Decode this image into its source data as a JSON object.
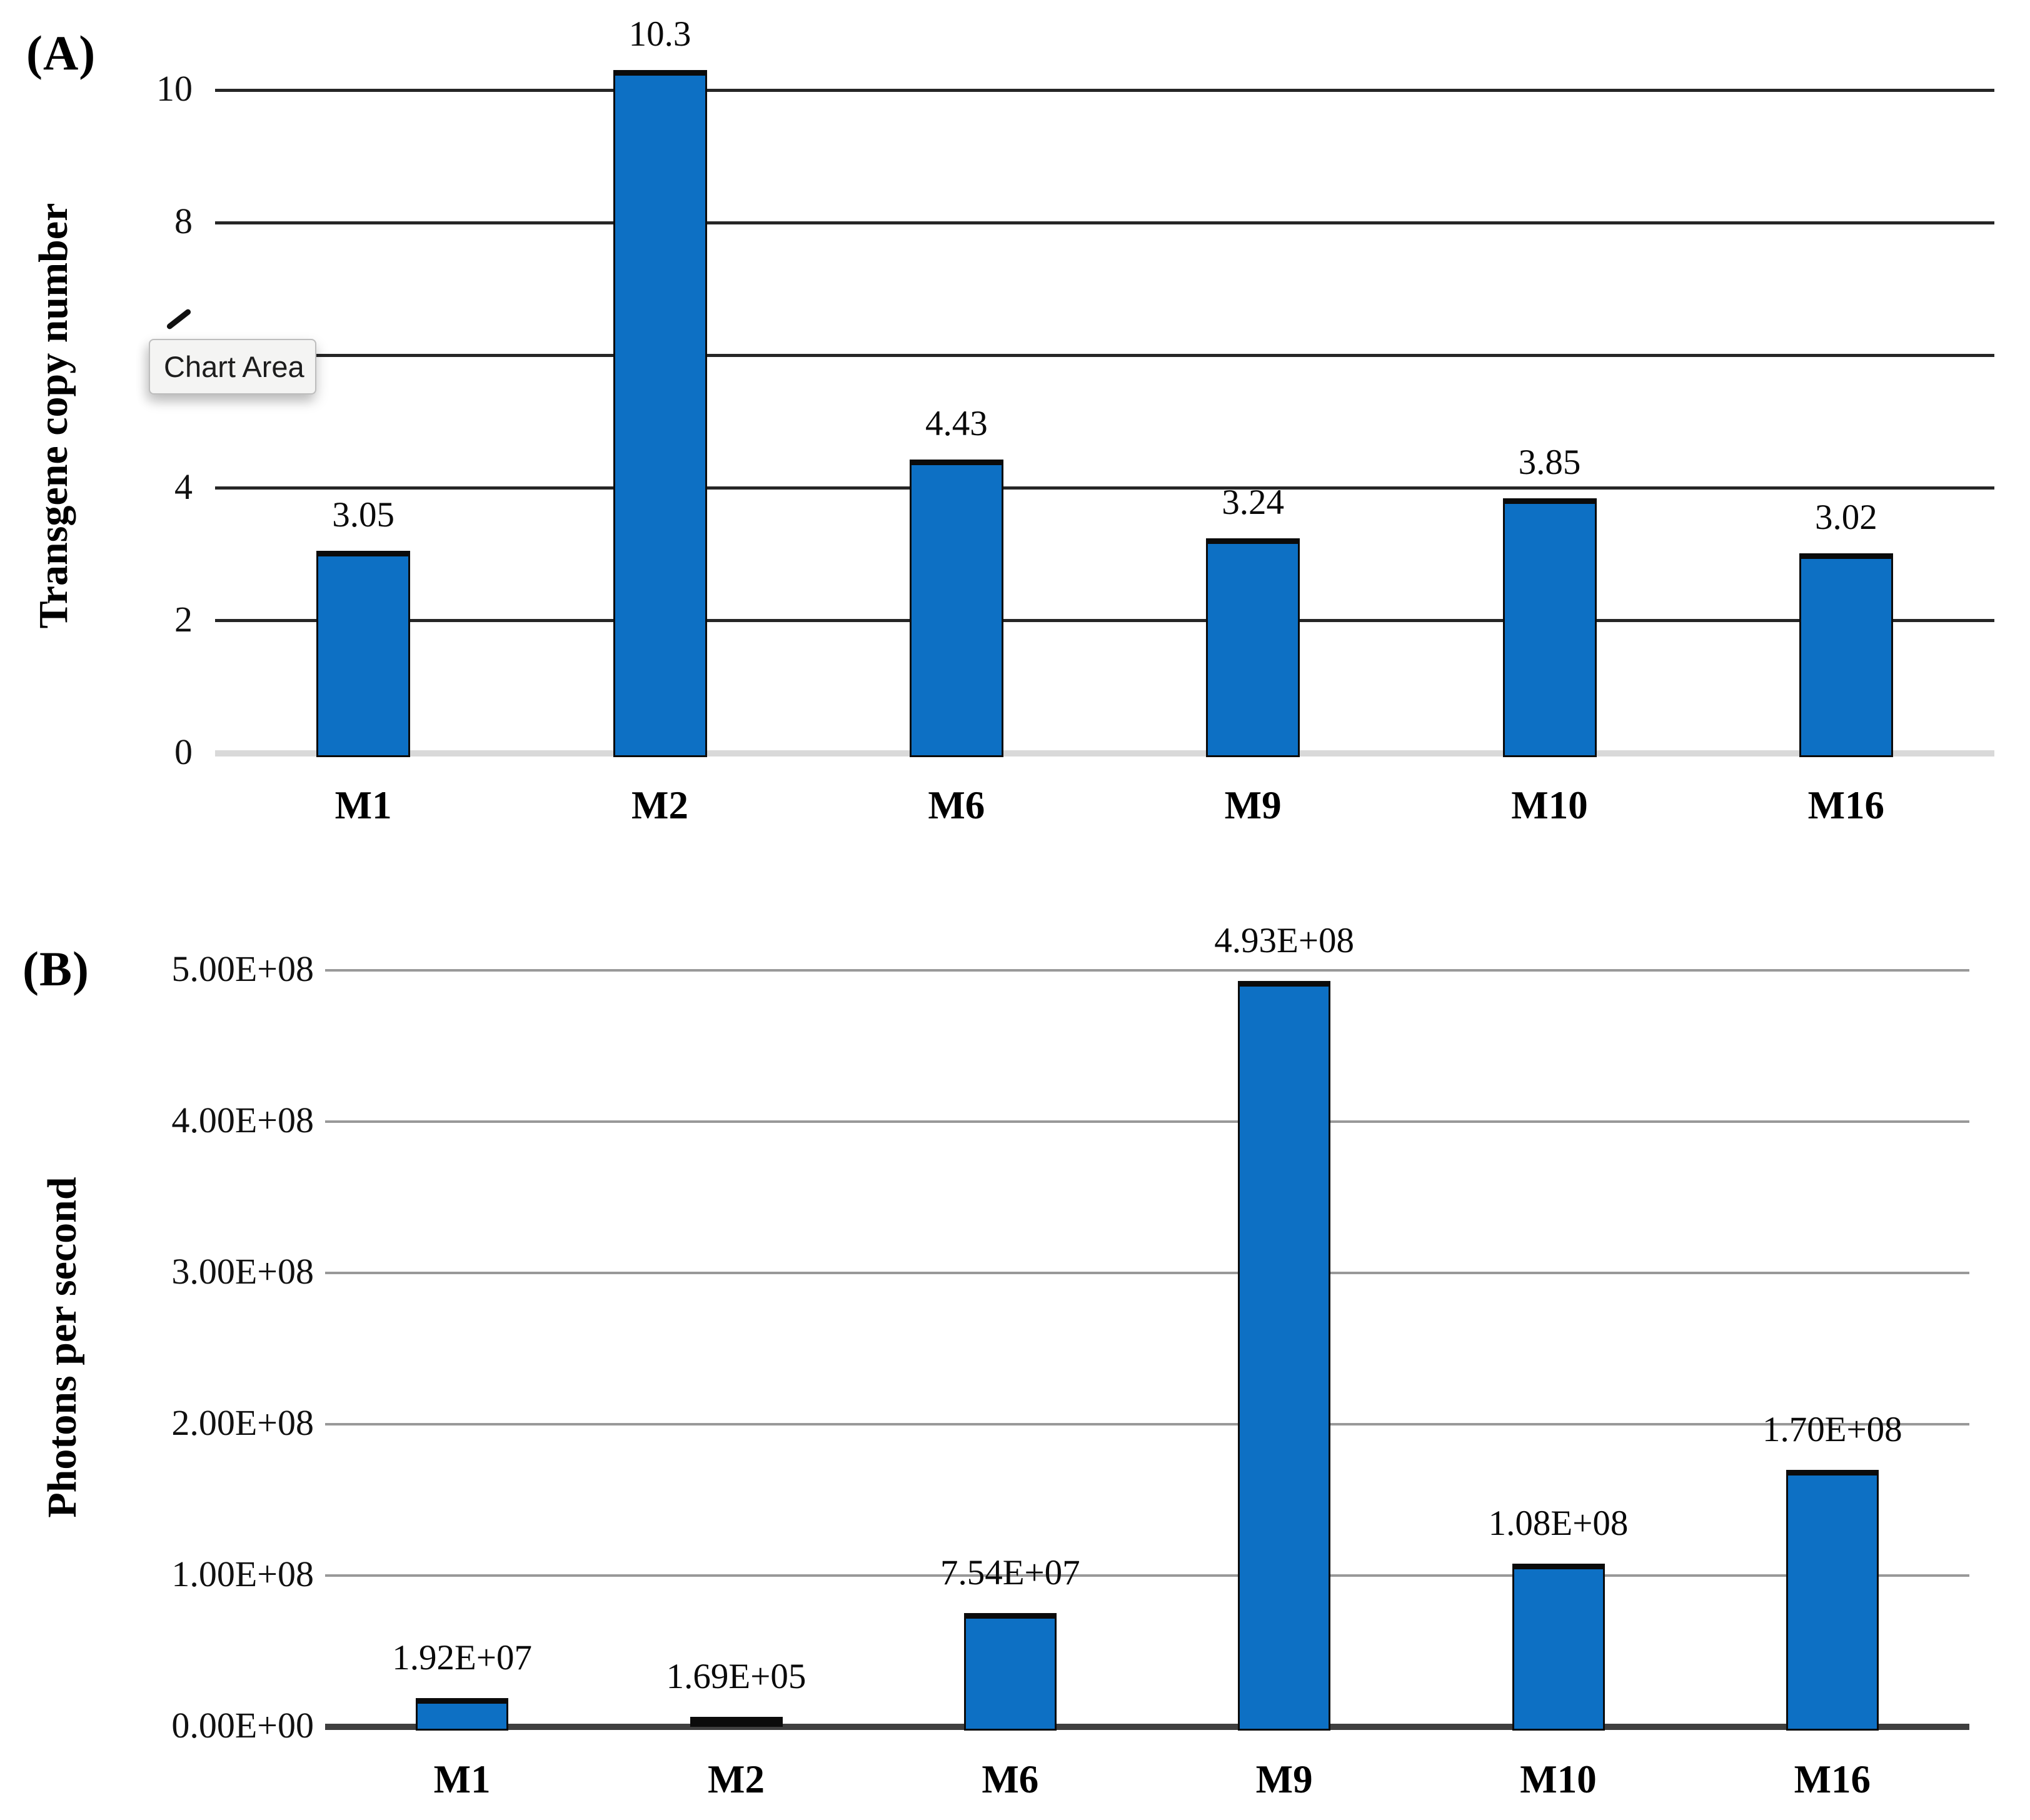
{
  "page": {
    "background": "#FFFFFF"
  },
  "tooltip": {
    "text": "Chart Area"
  },
  "colors": {
    "bar_fill": "#0D70C4",
    "bar_border": "#0B0B0B",
    "panel_a_gridline": "#262626",
    "panel_a_baseline": "#D9D9D9",
    "panel_b_gridline": "#999999",
    "panel_b_baseline": "#3F3F3F",
    "text": "#000000",
    "tooltip_background": "#F4F4F3",
    "tooltip_border": "#BDBDBD"
  },
  "chart_data": [
    {
      "id": "A",
      "panel_label": "(A)",
      "type": "bar",
      "title": "",
      "xlabel": "",
      "ylabel": "Transgene copy number",
      "categories": [
        "M1",
        "M2",
        "M6",
        "M9",
        "M10",
        "M16"
      ],
      "values": [
        3.05,
        10.3,
        4.43,
        3.24,
        3.85,
        3.02
      ],
      "data_labels": [
        "3.05",
        "10.3",
        "4.43",
        "3.24",
        "3.85",
        "3.02"
      ],
      "ylim": [
        0,
        10
      ],
      "ytick_values": [
        0,
        2,
        4,
        6,
        8,
        10
      ],
      "ytick_labels": [
        "0",
        "2",
        "4",
        null,
        "8",
        "10"
      ],
      "hidden_tick_note": "the '6' tick label is obscured by the Chart Area tooltip",
      "grid": true,
      "legend": false
    },
    {
      "id": "B",
      "panel_label": "(B)",
      "type": "bar",
      "title": "",
      "xlabel": "",
      "ylabel": "Photons per second",
      "categories": [
        "M1",
        "M2",
        "M6",
        "M9",
        "M10",
        "M16"
      ],
      "values": [
        19200000,
        169000,
        75400000,
        493000000,
        108000000,
        170000000
      ],
      "data_labels": [
        "1.92E+07",
        "1.69E+05",
        "7.54E+07",
        "4.93E+08",
        "1.08E+08",
        "1.70E+08"
      ],
      "ylim": [
        0,
        500000000
      ],
      "ytick_values": [
        0,
        100000000,
        200000000,
        300000000,
        400000000,
        500000000
      ],
      "ytick_labels": [
        "0.00E+00",
        "1.00E+08",
        "2.00E+08",
        "3.00E+08",
        "4.00E+08",
        "5.00E+08"
      ],
      "grid": true,
      "legend": false
    }
  ]
}
